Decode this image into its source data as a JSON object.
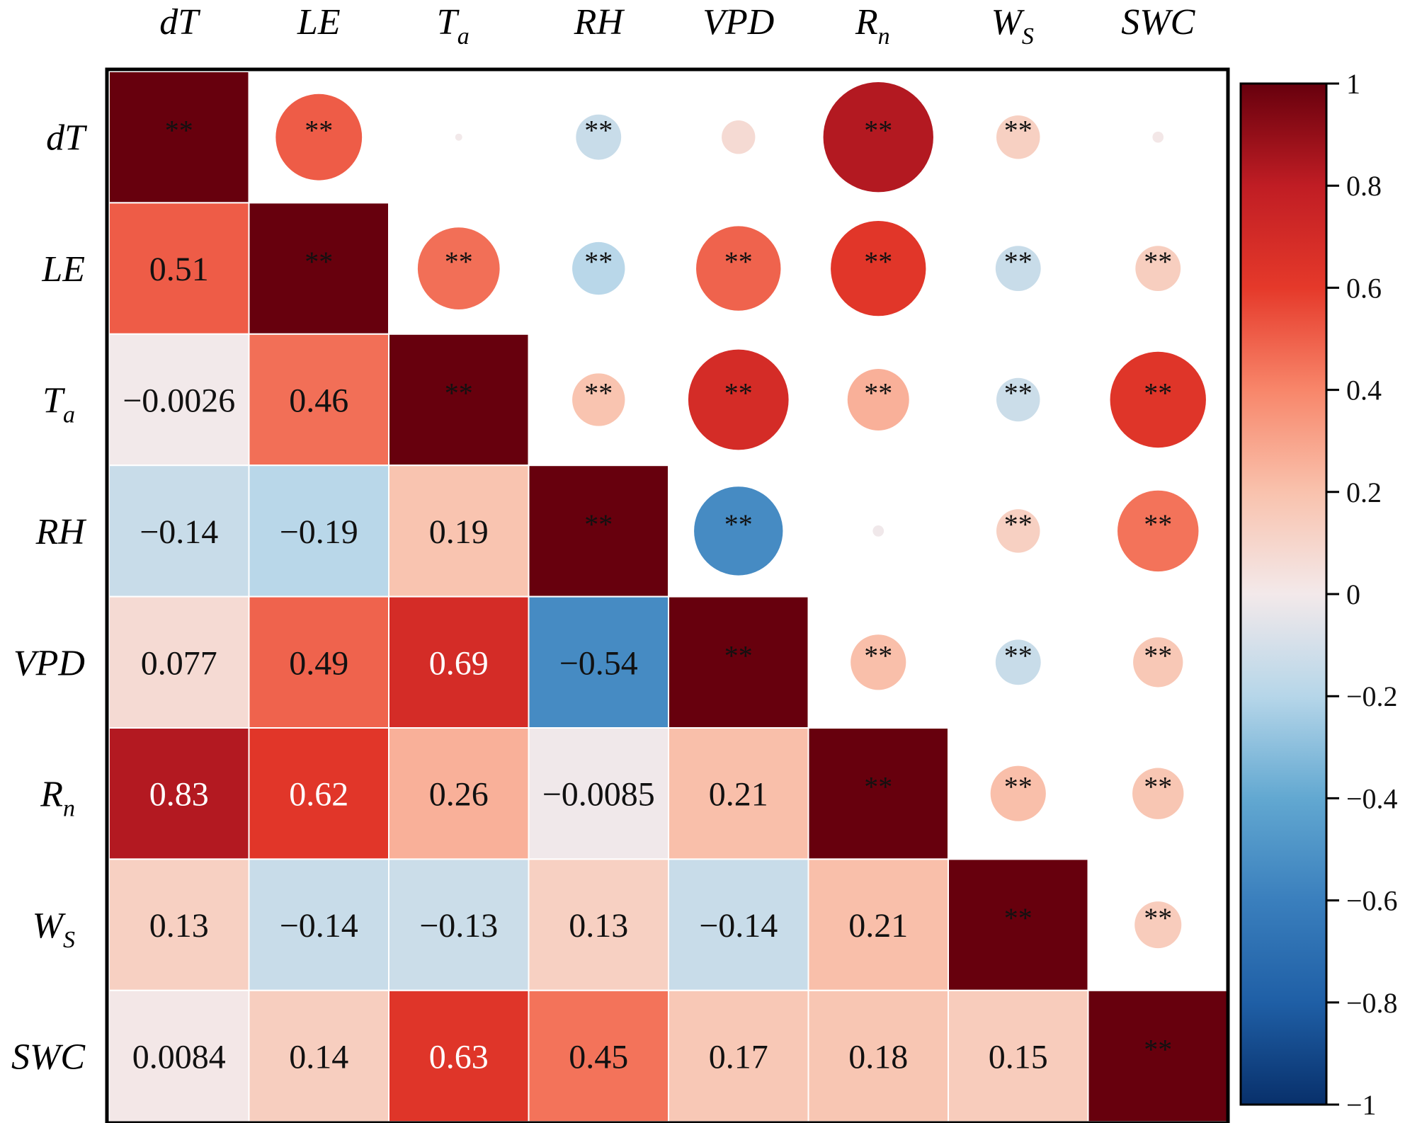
{
  "chart_data": {
    "type": "heatmap",
    "title": "",
    "variables": [
      {
        "key": "dT",
        "base": "dT",
        "sub": ""
      },
      {
        "key": "LE",
        "base": "LE",
        "sub": ""
      },
      {
        "key": "Ta",
        "base": "T",
        "sub": "a"
      },
      {
        "key": "RH",
        "base": "RH",
        "sub": ""
      },
      {
        "key": "VPD",
        "base": "VPD",
        "sub": ""
      },
      {
        "key": "Rn",
        "base": "R",
        "sub": "n"
      },
      {
        "key": "WS",
        "base": "W",
        "sub": "S"
      },
      {
        "key": "SWC",
        "base": "SWC",
        "sub": ""
      }
    ],
    "lower_triangle_values": [
      [
        "1",
        "",
        "",
        "",
        "",
        "",
        "",
        ""
      ],
      [
        "0.51",
        "1",
        "",
        "",
        "",
        "",
        "",
        ""
      ],
      [
        "−0.0026",
        "0.46",
        "1",
        "",
        "",
        "",
        "",
        ""
      ],
      [
        "−0.14",
        "−0.19",
        "0.19",
        "1",
        "",
        "",
        "",
        ""
      ],
      [
        "0.077",
        "0.49",
        "0.69",
        "−0.54",
        "1",
        "",
        "",
        ""
      ],
      [
        "0.83",
        "0.62",
        "0.26",
        "−0.0085",
        "0.21",
        "1",
        "",
        ""
      ],
      [
        "0.13",
        "−0.14",
        "−0.13",
        "0.13",
        "−0.14",
        "0.21",
        "1",
        ""
      ],
      [
        "0.0084",
        "0.14",
        "0.63",
        "0.45",
        "0.17",
        "0.18",
        "0.15",
        "1"
      ]
    ],
    "significance_label": "**",
    "significance": [
      [
        true,
        true,
        false,
        true,
        false,
        true,
        true,
        false
      ],
      [
        true,
        true,
        true,
        true,
        true,
        true,
        true,
        true
      ],
      [
        false,
        true,
        true,
        true,
        true,
        true,
        true,
        true
      ],
      [
        true,
        true,
        true,
        true,
        true,
        false,
        true,
        true
      ],
      [
        false,
        true,
        true,
        true,
        true,
        true,
        true,
        true
      ],
      [
        true,
        true,
        true,
        false,
        true,
        true,
        true,
        true
      ],
      [
        true,
        true,
        true,
        true,
        true,
        true,
        true,
        true
      ],
      [
        false,
        true,
        true,
        true,
        true,
        true,
        true,
        true
      ]
    ],
    "colorbar": {
      "range": [
        -1,
        1
      ],
      "ticks": [
        "1",
        "0.8",
        "0.6",
        "0.4",
        "0.2",
        "0",
        "−0.2",
        "−0.4",
        "−0.6",
        "−0.8",
        "−1"
      ],
      "colors": {
        "neg_1": "#08306b",
        "neg_08": "#1f5fa6",
        "neg_06": "#3a7fbd",
        "neg_04": "#62a8d1",
        "neg_02": "#b6d6e9",
        "zero": "#f3e9ea",
        "pos_02": "#f9c2ad",
        "pos_04": "#f8866a",
        "pos_06": "#e5392a",
        "pos_08": "#c01d24",
        "pos_1": "#67000d"
      }
    }
  }
}
